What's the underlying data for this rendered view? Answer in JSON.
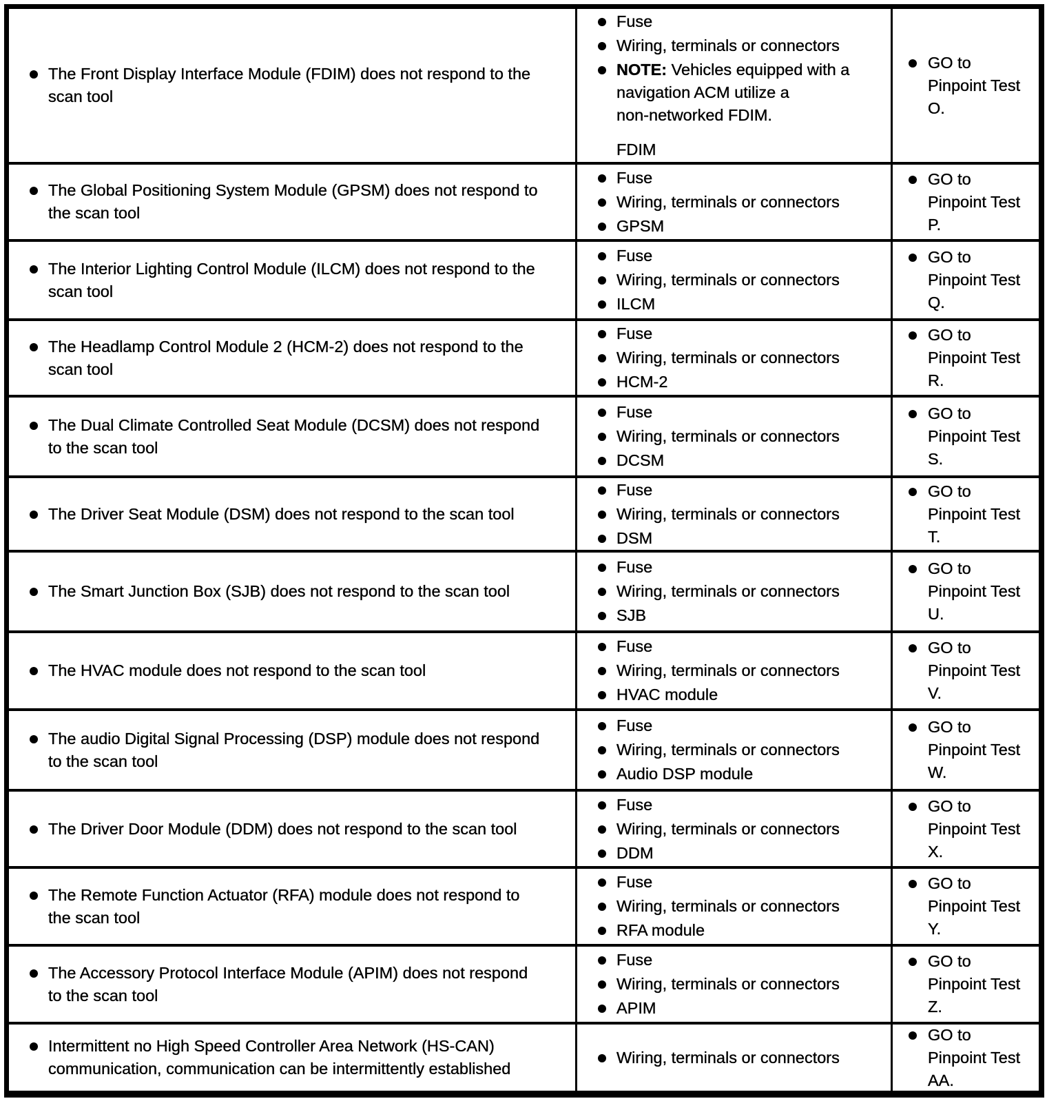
{
  "colors": {
    "background": "#ffffff",
    "text": "#000000",
    "border": "#000000"
  },
  "table": {
    "rows": [
      {
        "symptom": "The Front Display Interface Module (FDIM) does not respond to the\nscan tool",
        "causes": [
          {
            "text": "Fuse"
          },
          {
            "text": "Wiring, terminals or connectors"
          },
          {
            "bold": "NOTE:",
            "text": " Vehicles equipped with a\nnavigation ACM utilize a\nnon-networked FDIM."
          }
        ],
        "footer": "FDIM",
        "action": "GO to\nPinpoint Test\nO."
      },
      {
        "symptom": "The Global Positioning System Module (GPSM) does not respond to\nthe scan tool",
        "causes": [
          {
            "text": "Fuse"
          },
          {
            "text": "Wiring, terminals or connectors"
          },
          {
            "text": "GPSM"
          }
        ],
        "action": "GO to\nPinpoint Test\nP."
      },
      {
        "symptom": "The Interior Lighting Control Module (ILCM) does not respond to the\nscan tool",
        "causes": [
          {
            "text": "Fuse"
          },
          {
            "text": "Wiring, terminals or connectors"
          },
          {
            "text": "ILCM"
          }
        ],
        "action": "GO to\nPinpoint Test\nQ."
      },
      {
        "symptom": "The Headlamp Control Module 2 (HCM-2) does not respond to the\nscan tool",
        "causes": [
          {
            "text": "Fuse"
          },
          {
            "text": "Wiring, terminals or connectors"
          },
          {
            "text": "HCM-2"
          }
        ],
        "action": "GO to\nPinpoint Test\nR."
      },
      {
        "symptom": "The Dual Climate Controlled Seat Module (DCSM) does not respond\nto the scan tool",
        "causes": [
          {
            "text": "Fuse"
          },
          {
            "text": "Wiring, terminals or connectors"
          },
          {
            "text": "DCSM"
          }
        ],
        "action": "GO to\nPinpoint Test\nS."
      },
      {
        "symptom": "The Driver Seat Module (DSM) does not respond to the scan tool",
        "causes": [
          {
            "text": "Fuse"
          },
          {
            "text": "Wiring, terminals or connectors"
          },
          {
            "text": "DSM"
          }
        ],
        "action": "GO to\nPinpoint Test\nT."
      },
      {
        "symptom": "The Smart Junction Box (SJB) does not respond to the scan tool",
        "causes": [
          {
            "text": "Fuse"
          },
          {
            "text": "Wiring, terminals or connectors"
          },
          {
            "text": "SJB"
          }
        ],
        "action": "GO to\nPinpoint Test\nU."
      },
      {
        "symptom": "The HVAC module does not respond to the scan tool",
        "causes": [
          {
            "text": "Fuse"
          },
          {
            "text": "Wiring, terminals or connectors"
          },
          {
            "text": "HVAC module"
          }
        ],
        "action": "GO to\nPinpoint Test\nV."
      },
      {
        "symptom": "The audio Digital Signal Processing (DSP) module does not respond\nto the scan tool",
        "causes": [
          {
            "text": "Fuse"
          },
          {
            "text": "Wiring, terminals or connectors"
          },
          {
            "text": "Audio DSP module"
          }
        ],
        "action": "GO to\nPinpoint Test\nW."
      },
      {
        "symptom": "The Driver Door Module (DDM) does not respond to the scan tool",
        "causes": [
          {
            "text": "Fuse"
          },
          {
            "text": "Wiring, terminals or connectors"
          },
          {
            "text": "DDM"
          }
        ],
        "action": "GO to\nPinpoint Test\nX."
      },
      {
        "symptom": "The Remote Function Actuator (RFA) module does not respond to\nthe scan tool",
        "causes": [
          {
            "text": "Fuse"
          },
          {
            "text": "Wiring, terminals or connectors"
          },
          {
            "text": "RFA module"
          }
        ],
        "action": "GO to\nPinpoint Test\nY."
      },
      {
        "symptom": "The Accessory Protocol Interface Module (APIM) does not respond\nto the scan tool",
        "causes": [
          {
            "text": "Fuse"
          },
          {
            "text": "Wiring, terminals or connectors"
          },
          {
            "text": "APIM"
          }
        ],
        "action": "GO to\nPinpoint Test\nZ."
      },
      {
        "symptom": "Intermittent no High Speed Controller Area Network (HS-CAN)\ncommunication, communication can be intermittently established",
        "causes": [
          {
            "text": "Wiring, terminals or connectors"
          }
        ],
        "action": "GO to\nPinpoint Test\nAA."
      }
    ]
  }
}
